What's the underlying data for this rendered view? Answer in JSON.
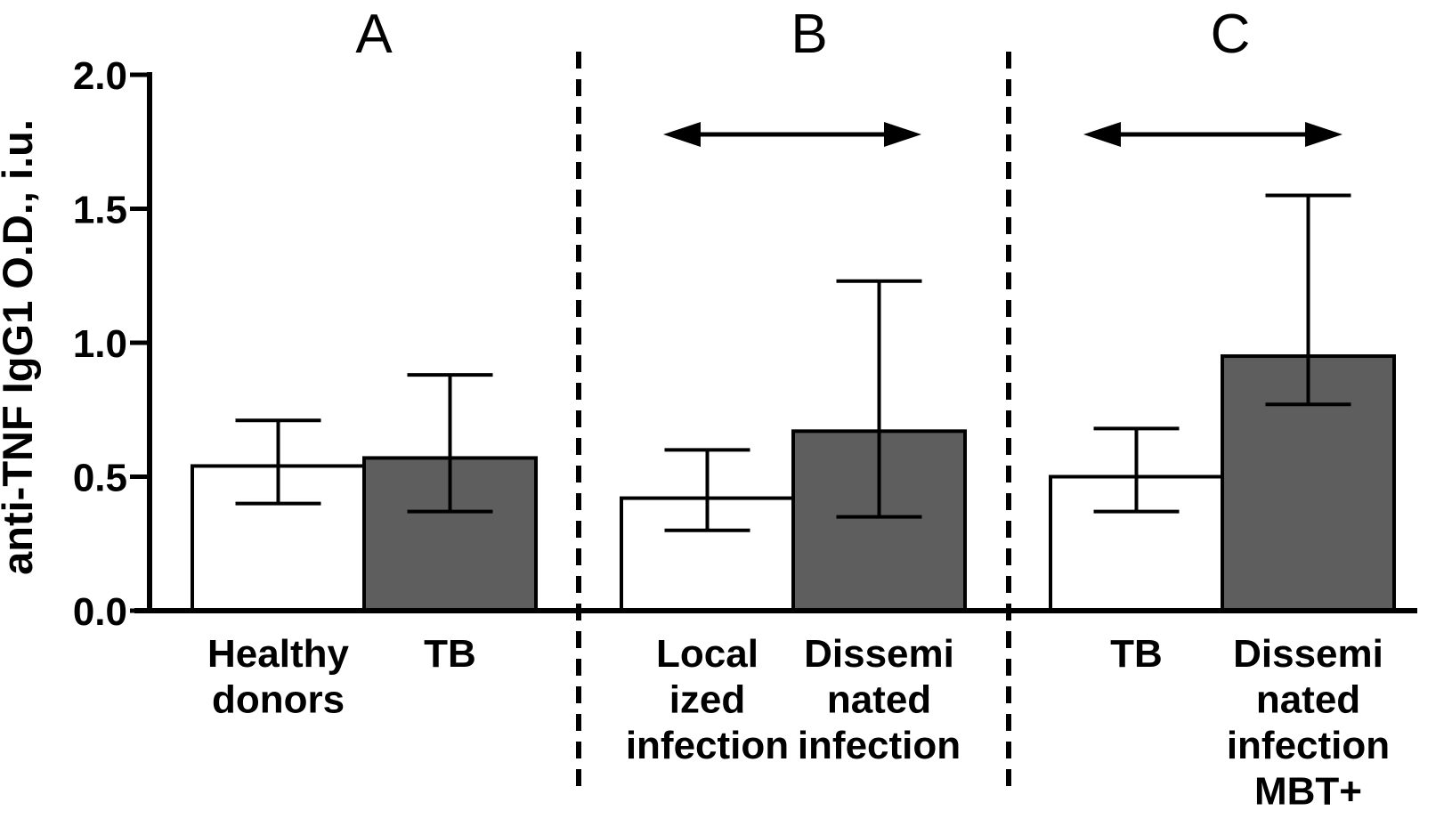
{
  "figure": {
    "background": "#ffffff",
    "y_axis": {
      "label": "anti-TNF IgG1 O.D., i.u.",
      "tick_labels": [
        "0.0",
        "0.5",
        "1.0",
        "1.5",
        "2.0"
      ],
      "min": 0.0,
      "max": 2.0
    },
    "panels": [
      {
        "title": "A",
        "comparison_arrow": false,
        "bars": [
          {
            "category_lines": [
              "Healthy",
              "donors"
            ],
            "fill": "white",
            "value": 0.54,
            "err_low": 0.4,
            "err_high": 0.71
          },
          {
            "category_lines": [
              "TB"
            ],
            "fill": "gray",
            "value": 0.57,
            "err_low": 0.37,
            "err_high": 0.88
          }
        ]
      },
      {
        "title": "B",
        "comparison_arrow": true,
        "bars": [
          {
            "category_lines": [
              "Local",
              "ized",
              "infection"
            ],
            "fill": "white",
            "value": 0.42,
            "err_low": 0.3,
            "err_high": 0.6
          },
          {
            "category_lines": [
              "Dissemi",
              "nated",
              "infection"
            ],
            "fill": "gray",
            "value": 0.67,
            "err_low": 0.35,
            "err_high": 1.23
          }
        ]
      },
      {
        "title": "C",
        "comparison_arrow": true,
        "bars": [
          {
            "category_lines": [
              "TB"
            ],
            "fill": "white",
            "value": 0.5,
            "err_low": 0.37,
            "err_high": 0.68
          },
          {
            "category_lines": [
              "Dissemi",
              "nated",
              "infection",
              "MBT+"
            ],
            "fill": "gray",
            "value": 0.95,
            "err_low": 0.77,
            "err_high": 1.55
          }
        ]
      }
    ],
    "colors": {
      "bar_gray": "#5e5e5e",
      "bar_white": "#ffffff",
      "ink": "#000000"
    }
  },
  "chart_data": {
    "type": "bar",
    "title": "",
    "xlabel": "",
    "ylabel": "anti-TNF IgG1 O.D., i.u.",
    "ylim": [
      0.0,
      2.0
    ],
    "yticks": [
      0.0,
      0.5,
      1.0,
      1.5,
      2.0
    ],
    "grid": false,
    "legend_position": "none",
    "panels": [
      {
        "panel": "A",
        "categories": [
          "Healthy donors",
          "TB"
        ],
        "values": [
          0.54,
          0.57
        ],
        "err_low": [
          0.4,
          0.37
        ],
        "err_high": [
          0.71,
          0.88
        ],
        "bar_fills": [
          "white",
          "dark-gray"
        ],
        "comparison_arrow": false
      },
      {
        "panel": "B",
        "categories": [
          "Localized infection",
          "Disseminated infection"
        ],
        "values": [
          0.42,
          0.67
        ],
        "err_low": [
          0.3,
          0.35
        ],
        "err_high": [
          0.6,
          1.23
        ],
        "bar_fills": [
          "white",
          "dark-gray"
        ],
        "comparison_arrow": true
      },
      {
        "panel": "C",
        "categories": [
          "TB",
          "Disseminated infection MBT+"
        ],
        "values": [
          0.5,
          0.95
        ],
        "err_low": [
          0.37,
          0.77
        ],
        "err_high": [
          0.68,
          1.55
        ],
        "bar_fills": [
          "white",
          "dark-gray"
        ],
        "comparison_arrow": true
      }
    ]
  }
}
